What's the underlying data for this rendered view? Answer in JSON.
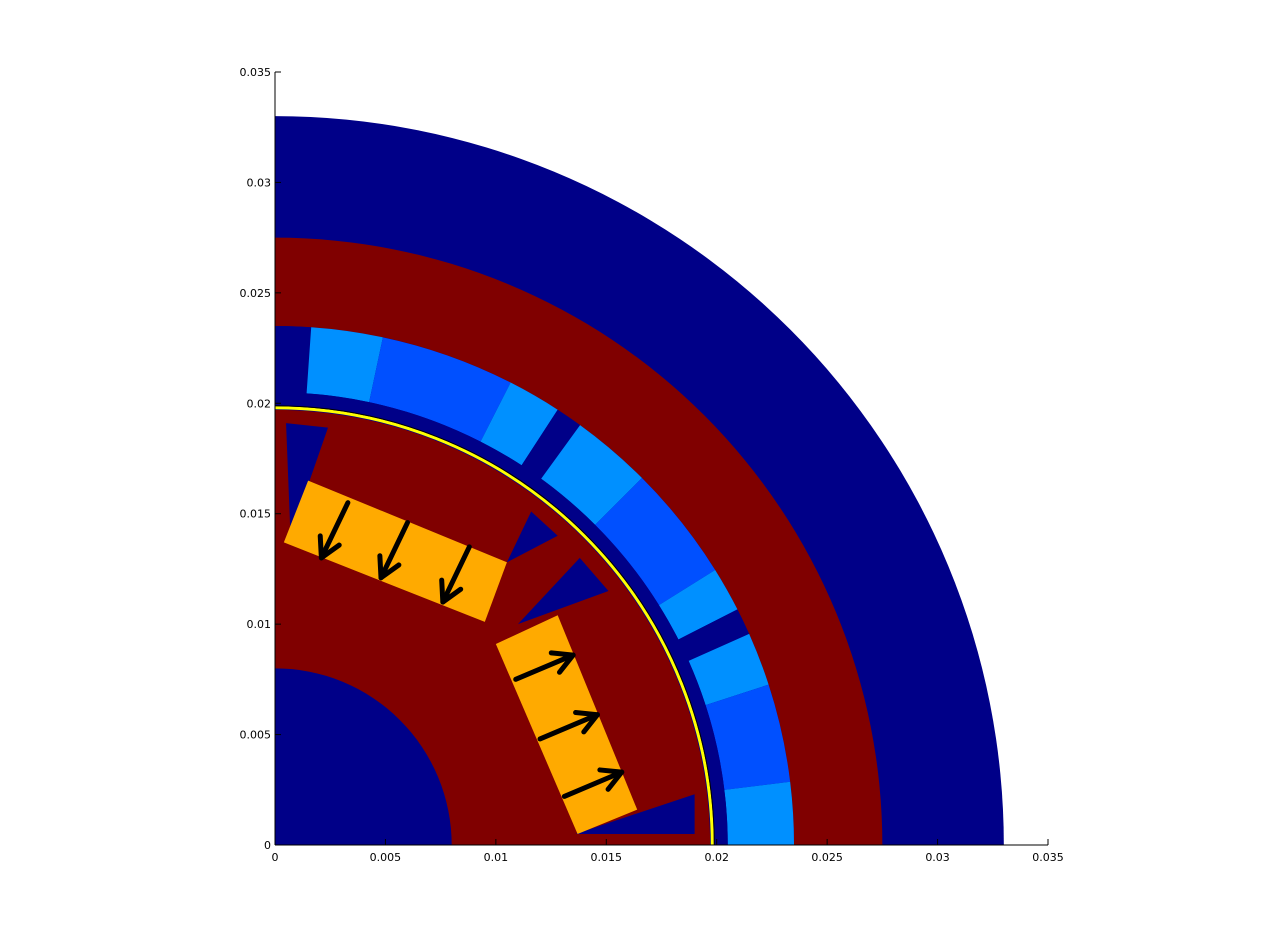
{
  "colors": {
    "background": "#ffffff",
    "air": "#000088",
    "iron": "#800000",
    "magnet": "#ffaa00",
    "coil_light": "#0090ff",
    "coil_mid": "#0050ff",
    "airgap_line": "#ffff00",
    "arrow": "#000000",
    "axis": "#000000"
  },
  "axes": {
    "x_ticks": [
      "0",
      "0.005",
      "0.01",
      "0.015",
      "0.02",
      "0.025",
      "0.03",
      "0.035"
    ],
    "y_ticks": [
      "0",
      "0.005",
      "0.01",
      "0.015",
      "0.02",
      "0.025",
      "0.03",
      "0.035"
    ],
    "xlim": [
      0,
      0.035
    ],
    "ylim": [
      0,
      0.035
    ]
  },
  "geometry": {
    "shaft_radius": 0.008,
    "rotor_outer_radius": 0.0197,
    "airgap_radius": 0.0198,
    "stator_inner_radius": 0.0205,
    "coil_outer_radius": 0.0235,
    "stator_outer_radius": 0.0275,
    "outer_air_radius": 0.033
  },
  "magnets": [
    {
      "name": "upper-magnet",
      "corners": [
        [
          0.0015,
          0.0165
        ],
        [
          0.0105,
          0.0128
        ],
        [
          0.0095,
          0.0101
        ],
        [
          0.0004,
          0.0137
        ]
      ],
      "arrows": [
        {
          "from": [
            0.0033,
            0.0155
          ],
          "to": [
            0.0021,
            0.013
          ]
        },
        {
          "from": [
            0.006,
            0.0146
          ],
          "to": [
            0.0048,
            0.0121
          ]
        },
        {
          "from": [
            0.0088,
            0.0135
          ],
          "to": [
            0.0076,
            0.011
          ]
        }
      ]
    },
    {
      "name": "lower-magnet",
      "corners": [
        [
          0.01,
          0.0091
        ],
        [
          0.0128,
          0.0104
        ],
        [
          0.0164,
          0.0016
        ],
        [
          0.0137,
          0.0005
        ]
      ],
      "arrows": [
        {
          "from": [
            0.0109,
            0.0075
          ],
          "to": [
            0.0135,
            0.0086
          ]
        },
        {
          "from": [
            0.012,
            0.0048
          ],
          "to": [
            0.0146,
            0.0059
          ]
        },
        {
          "from": [
            0.0131,
            0.0022
          ],
          "to": [
            0.0157,
            0.0033
          ]
        }
      ]
    }
  ],
  "rotor_pockets": [
    [
      [
        0.0005,
        0.0191
      ],
      [
        0.0024,
        0.0189
      ],
      [
        0.0007,
        0.014
      ]
    ],
    [
      [
        0.0105,
        0.0128
      ],
      [
        0.0116,
        0.0151
      ],
      [
        0.0128,
        0.014
      ]
    ],
    [
      [
        0.011,
        0.01
      ],
      [
        0.0138,
        0.013
      ],
      [
        0.0151,
        0.0115
      ]
    ],
    [
      [
        0.0136,
        0.0005
      ],
      [
        0.019,
        0.0005
      ],
      [
        0.019,
        0.0023
      ]
    ]
  ],
  "coil_segments": [
    {
      "from_deg": 86,
      "to_deg": 92,
      "color": "air"
    },
    {
      "from_deg": 78,
      "to_deg": 86,
      "color": "coil_light"
    },
    {
      "from_deg": 63,
      "to_deg": 78,
      "color": "coil_mid"
    },
    {
      "from_deg": 57,
      "to_deg": 63,
      "color": "coil_light"
    },
    {
      "from_deg": 54,
      "to_deg": 57,
      "color": "air"
    },
    {
      "from_deg": 45,
      "to_deg": 54,
      "color": "coil_light"
    },
    {
      "from_deg": 32,
      "to_deg": 45,
      "color": "coil_mid"
    },
    {
      "from_deg": 27,
      "to_deg": 32,
      "color": "coil_light"
    },
    {
      "from_deg": 24,
      "to_deg": 27,
      "color": "air"
    },
    {
      "from_deg": 18,
      "to_deg": 24,
      "color": "coil_light"
    },
    {
      "from_deg": 7,
      "to_deg": 18,
      "color": "coil_mid"
    },
    {
      "from_deg": 0,
      "to_deg": 7,
      "color": "coil_light"
    }
  ]
}
